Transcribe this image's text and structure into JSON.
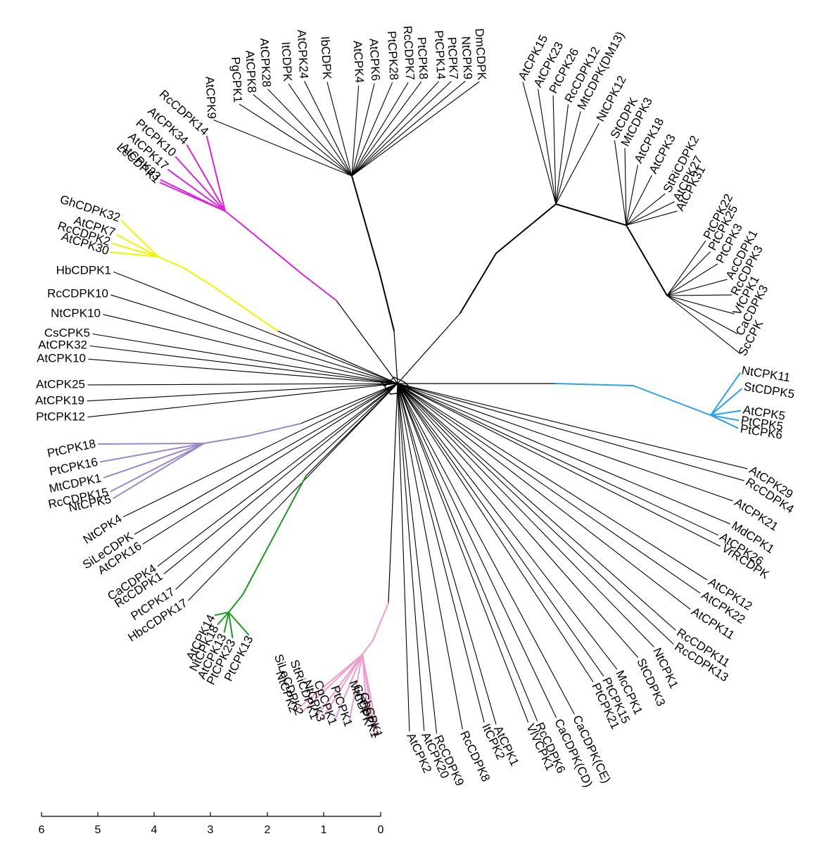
{
  "colors": {
    "default": "#000000",
    "magenta": "#dd22dd",
    "yellow": "#f2f200",
    "blue": "#2aa0e6",
    "purple": "#9b87c8",
    "green": "#1e9a1e",
    "pink": "#ef9ccd"
  },
  "scale": {
    "ticks": [
      "6",
      "5",
      "4",
      "3",
      "2",
      "1",
      "0"
    ]
  },
  "clades": {
    "top": [
      "AtCPK15",
      "AtCPK23",
      "PtCPK26",
      "RcCDPK12",
      "MtCDPK(DM13)",
      "NtCPK12",
      "StCDPK",
      "MtCDPK3",
      "AtCPK18",
      "AtCPK3",
      "StRiCDPK2",
      "AtCPK27",
      "AtCPK31",
      "PtCPK22",
      "PtCPK25",
      "PtCPK3",
      "AcCDPK1",
      "RcCDPK3",
      "VfCPK1",
      "CaCDPK3",
      "ScCPK"
    ],
    "top_left": [
      "DmCDPK",
      "NtCPK9",
      "PtCPK7",
      "PtCPK14",
      "PtCPK8",
      "RcCDPK7",
      "PtCPK28",
      "AtCPK6",
      "AtCPK4",
      "IbCDPK",
      "AtCPK24",
      "ItCDPK",
      "AtCPK28",
      "AtCPK8",
      "PgCPK1",
      "AtCPK9"
    ],
    "magenta": [
      "RcCDPK14",
      "AtCPK34",
      "PtCPK10",
      "AtCPK17",
      "AtCPK33",
      "LeCDPK1"
    ],
    "yellow": [
      "GhCDPK32",
      "AtCPK7",
      "RcCDPK2",
      "AtCPK30"
    ],
    "left": [
      "HbCDPK1",
      "RcCDPK10",
      "NtCPK10",
      "CsCPK5",
      "AtCPK32",
      "AtCPK10",
      "AtCPK25",
      "AtCPK19",
      "PtCPK12"
    ],
    "purple": [
      "PtCPK18",
      "PtCPK16",
      "MtCDPK1",
      "RcCDPK15",
      "NtCPK5"
    ],
    "lower_left": [
      "NtCPK4",
      "SiLeCDPK",
      "AtCPK16",
      "CaCDPK4",
      "RcCDPK1",
      "PtCPK17",
      "HbcCDPK17"
    ],
    "green": [
      "AtCPK14",
      "NtCPK18",
      "AtCPK13",
      "PtCPK23",
      "PtCPK13"
    ],
    "pink": [
      "NtCPK2",
      "SiLeCDPK2",
      "StRiCDPK1",
      "NtCPK3",
      "CpCPK1",
      "PtCPK1",
      "MtCDPK",
      "GhCDPK1",
      "GhCPK1"
    ],
    "bottom": [
      "AtCPK2",
      "AtCPK20",
      "RcCDPK9",
      "RcCDPK8",
      "ItCPK2",
      "AtCPK1",
      "VlVCPK1",
      "RcCDPK6",
      "CaCDPK(CD)",
      "CaCDPK(CE)",
      "PtCPK21",
      "PtCPK15",
      "McCPK1",
      "StCDPK3",
      "NtCPK1"
    ],
    "right": [
      "RcCDPK13",
      "RcCDPK11",
      "AtCPK11",
      "AtCPK22",
      "AtCPK12",
      "VrRCDPK",
      "AtCPK26",
      "MdCPK1",
      "AtCPK21",
      "RcCDPK4",
      "AtCPK29"
    ],
    "blue": [
      "NtCPK11",
      "StCDPK5",
      "AtCPK5",
      "PtCPK5",
      "PtCPK6"
    ]
  }
}
